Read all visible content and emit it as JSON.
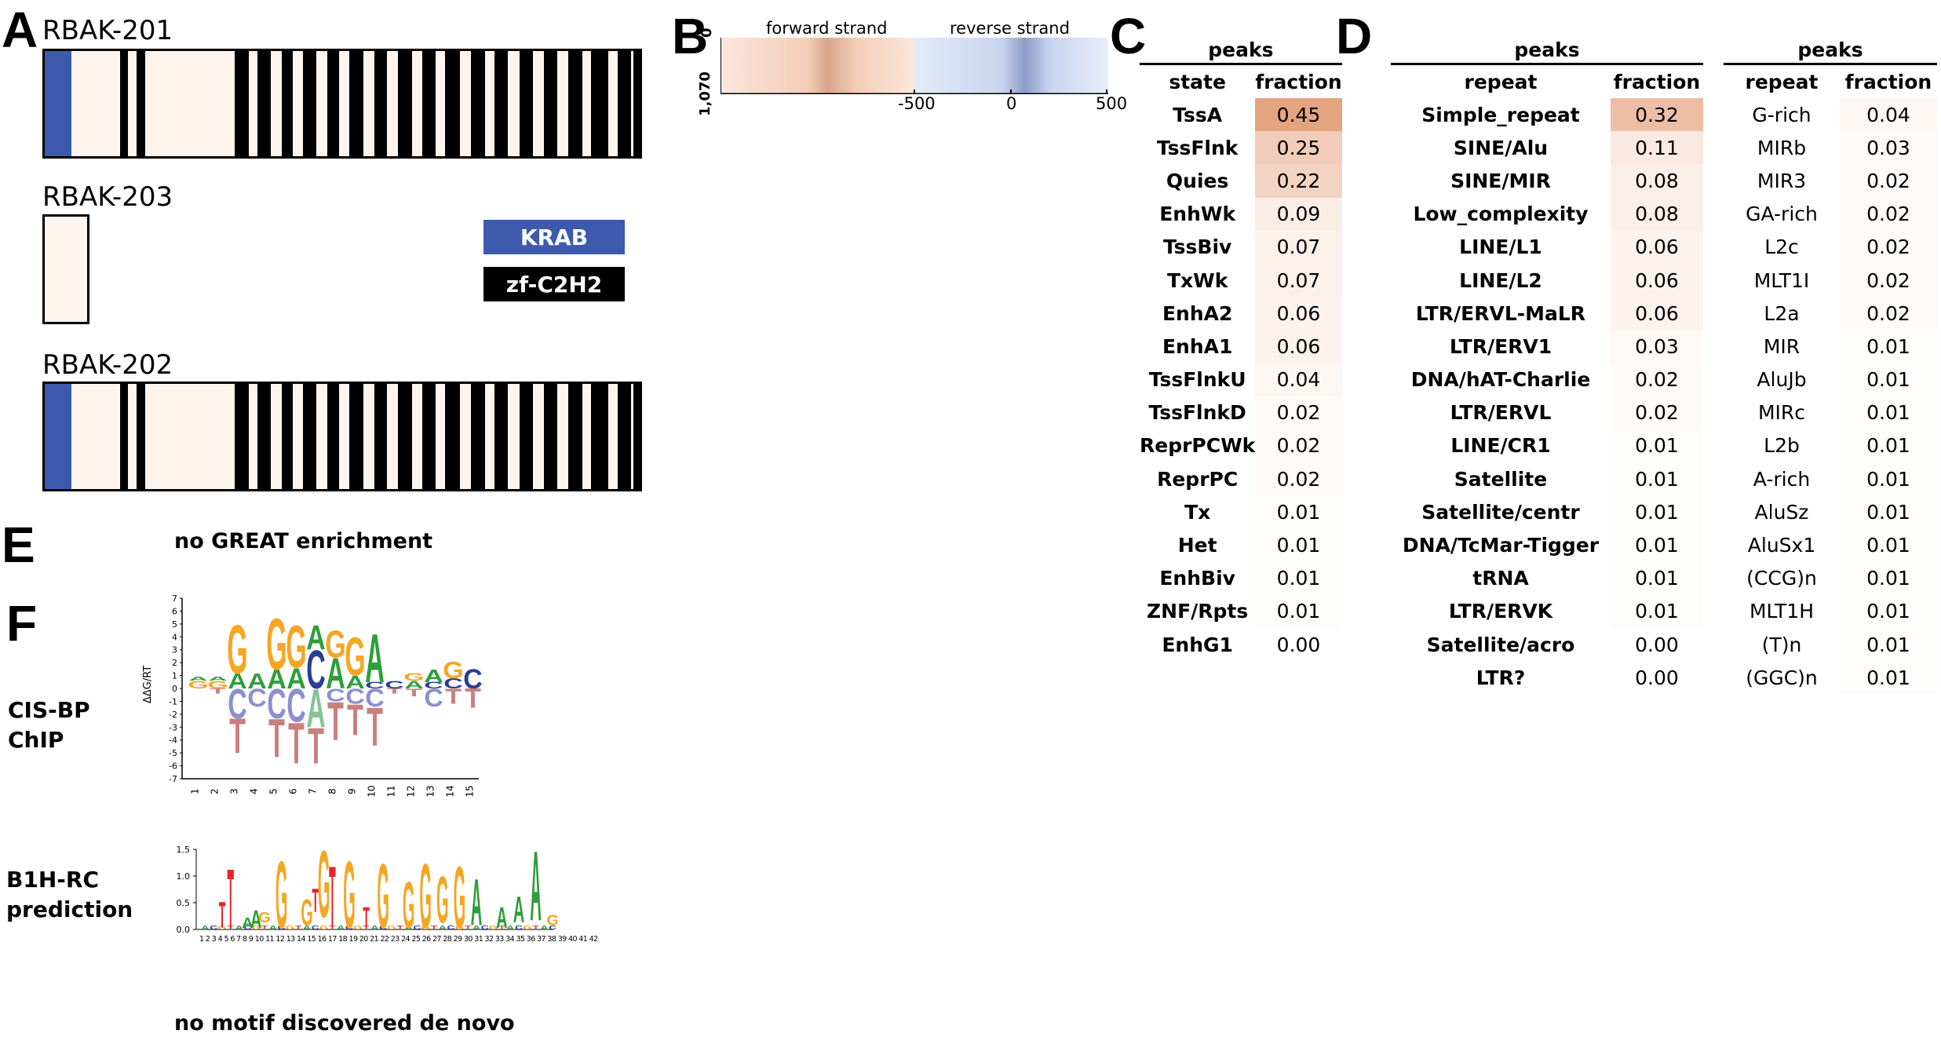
{
  "panels": {
    "A": "A",
    "B": "B",
    "C": "C",
    "D": "D",
    "E": "E",
    "F": "F"
  },
  "panel_a": {
    "isoforms": [
      {
        "name": "RBAK-201"
      },
      {
        "name": "RBAK-203"
      },
      {
        "name": "RBAK-202"
      }
    ],
    "legend": {
      "krab": {
        "label": "KRAB",
        "color": "#3d5aad"
      },
      "zf": {
        "label": "zf-C2H2",
        "color": "#000000"
      }
    },
    "background_color": "#fdf4ee"
  },
  "panel_b": {
    "forward_label": "forward strand",
    "reverse_label": "reverse strand",
    "y_top": "0",
    "y_bottom": "1,070",
    "x_ticks": [
      "-500",
      "0",
      "500"
    ],
    "forward_color": "#e8967a",
    "reverse_color": "#8da6d8"
  },
  "panel_c": {
    "title": "peaks",
    "col_state": "state",
    "col_fraction": "fraction",
    "rows": [
      {
        "label": "TssA",
        "value": "0.45",
        "v": 0.45
      },
      {
        "label": "TssFlnk",
        "value": "0.25",
        "v": 0.25
      },
      {
        "label": "Quies",
        "value": "0.22",
        "v": 0.22
      },
      {
        "label": "EnhWk",
        "value": "0.09",
        "v": 0.09
      },
      {
        "label": "TssBiv",
        "value": "0.07",
        "v": 0.07
      },
      {
        "label": "TxWk",
        "value": "0.07",
        "v": 0.07
      },
      {
        "label": "EnhA2",
        "value": "0.06",
        "v": 0.06
      },
      {
        "label": "EnhA1",
        "value": "0.06",
        "v": 0.06
      },
      {
        "label": "TssFlnkU",
        "value": "0.04",
        "v": 0.04
      },
      {
        "label": "TssFlnkD",
        "value": "0.02",
        "v": 0.02
      },
      {
        "label": "ReprPCWk",
        "value": "0.02",
        "v": 0.02
      },
      {
        "label": "ReprPC",
        "value": "0.02",
        "v": 0.02
      },
      {
        "label": "Tx",
        "value": "0.01",
        "v": 0.01
      },
      {
        "label": "Het",
        "value": "0.01",
        "v": 0.01
      },
      {
        "label": "EnhBiv",
        "value": "0.01",
        "v": 0.01
      },
      {
        "label": "ZNF/Rpts",
        "value": "0.01",
        "v": 0.01
      },
      {
        "label": "EnhG1",
        "value": "0.00",
        "v": 0.0
      }
    ]
  },
  "panel_d": {
    "left": {
      "title": "peaks",
      "col_repeat": "repeat",
      "col_fraction": "fraction",
      "rows": [
        {
          "label": "Simple_repeat",
          "value": "0.32",
          "v": 0.32
        },
        {
          "label": "SINE/Alu",
          "value": "0.11",
          "v": 0.11
        },
        {
          "label": "SINE/MIR",
          "value": "0.08",
          "v": 0.08
        },
        {
          "label": "Low_complexity",
          "value": "0.08",
          "v": 0.08
        },
        {
          "label": "LINE/L1",
          "value": "0.06",
          "v": 0.06
        },
        {
          "label": "LINE/L2",
          "value": "0.06",
          "v": 0.06
        },
        {
          "label": "LTR/ERVL-MaLR",
          "value": "0.06",
          "v": 0.06
        },
        {
          "label": "LTR/ERV1",
          "value": "0.03",
          "v": 0.03
        },
        {
          "label": "DNA/hAT-Charlie",
          "value": "0.02",
          "v": 0.02
        },
        {
          "label": "LTR/ERVL",
          "value": "0.02",
          "v": 0.02
        },
        {
          "label": "LINE/CR1",
          "value": "0.01",
          "v": 0.01
        },
        {
          "label": "Satellite",
          "value": "0.01",
          "v": 0.01
        },
        {
          "label": "Satellite/centr",
          "value": "0.01",
          "v": 0.01
        },
        {
          "label": "DNA/TcMar-Tigger",
          "value": "0.01",
          "v": 0.01
        },
        {
          "label": "tRNA",
          "value": "0.01",
          "v": 0.01
        },
        {
          "label": "LTR/ERVK",
          "value": "0.01",
          "v": 0.01
        },
        {
          "label": "Satellite/acro",
          "value": "0.00",
          "v": 0.0
        },
        {
          "label": "LTR?",
          "value": "0.00",
          "v": 0.0
        }
      ]
    },
    "right": {
      "title": "peaks",
      "col_repeat": "repeat",
      "col_fraction": "fraction",
      "rows": [
        {
          "label": "G-rich",
          "value": "0.04",
          "v": 0.04
        },
        {
          "label": "MIRb",
          "value": "0.03",
          "v": 0.03
        },
        {
          "label": "MIR3",
          "value": "0.02",
          "v": 0.02
        },
        {
          "label": "GA-rich",
          "value": "0.02",
          "v": 0.02
        },
        {
          "label": "L2c",
          "value": "0.02",
          "v": 0.02
        },
        {
          "label": "MLT1I",
          "value": "0.02",
          "v": 0.02
        },
        {
          "label": "L2a",
          "value": "0.02",
          "v": 0.02
        },
        {
          "label": "MIR",
          "value": "0.01",
          "v": 0.01
        },
        {
          "label": "AluJb",
          "value": "0.01",
          "v": 0.01
        },
        {
          "label": "MIRc",
          "value": "0.01",
          "v": 0.01
        },
        {
          "label": "L2b",
          "value": "0.01",
          "v": 0.01
        },
        {
          "label": "A-rich",
          "value": "0.01",
          "v": 0.01
        },
        {
          "label": "AluSz",
          "value": "0.01",
          "v": 0.01
        },
        {
          "label": "AluSx1",
          "value": "0.01",
          "v": 0.01
        },
        {
          "label": "(CCG)n",
          "value": "0.01",
          "v": 0.01
        },
        {
          "label": "MLT1H",
          "value": "0.01",
          "v": 0.01
        },
        {
          "label": "(T)n",
          "value": "0.01",
          "v": 0.01
        },
        {
          "label": "(GGC)n",
          "value": "0.01",
          "v": 0.01
        }
      ]
    }
  },
  "panel_e": {
    "text": "no GREAT enrichment"
  },
  "panel_f": {
    "cisbp_label": "CIS-BP\nChIP",
    "cisbp_ylabel": "ΔΔG/RT",
    "cisbp_yticks": [
      "7",
      "6",
      "5",
      "4",
      "3",
      "2",
      "1",
      "0",
      "-1",
      "-2",
      "-3",
      "-4",
      "-5",
      "-6",
      "-7"
    ],
    "cisbp_positions": [
      "1",
      "2",
      "3",
      "4",
      "5",
      "6",
      "7",
      "8",
      "9",
      "10",
      "11",
      "12",
      "13",
      "14",
      "15"
    ],
    "cisbp_top": [
      "G",
      "G",
      "A",
      "A",
      "G",
      "A",
      "C",
      "A",
      "G",
      "A",
      "G",
      "A",
      "G",
      "G",
      "C"
    ],
    "cisbp_top_big": [
      "G",
      "G",
      "G",
      "A",
      "G",
      "G",
      "A",
      "A"
    ],
    "cisbp_bottom": [
      "C",
      "C",
      "C",
      "C",
      "A",
      "C",
      "C",
      "C",
      "C",
      "T",
      "T",
      "T",
      "T",
      "T",
      "T",
      "T",
      "T",
      "T"
    ],
    "b1h_label": "B1H-RC\nprediction",
    "b1h_yticks": [
      "1.5",
      "1.0",
      "0.5",
      "0.0"
    ],
    "b1h_positions": "1 2 3 4 5 6 7 8 9 10 11 12 13 14 15 16 17 18 19 20 21 22 23 24 25 26 27 28 29 30 31 32 33 34 35 36 37 38 39 40 41 42",
    "b1h_big_letters": [
      "T",
      "G",
      "G",
      "T",
      "G",
      "G",
      "G",
      "G",
      "A",
      "A"
    ],
    "b1h_small_letters": [
      "GAG",
      "AC",
      "AAT",
      "CT",
      "AT",
      "CA",
      "GA",
      "AT",
      "CAG"
    ],
    "colors": {
      "A": "#2e9e3b",
      "C": "#2b3d96",
      "G": "#f5a623",
      "T": "#c0504d"
    },
    "note": "no motif discovered de novo"
  }
}
